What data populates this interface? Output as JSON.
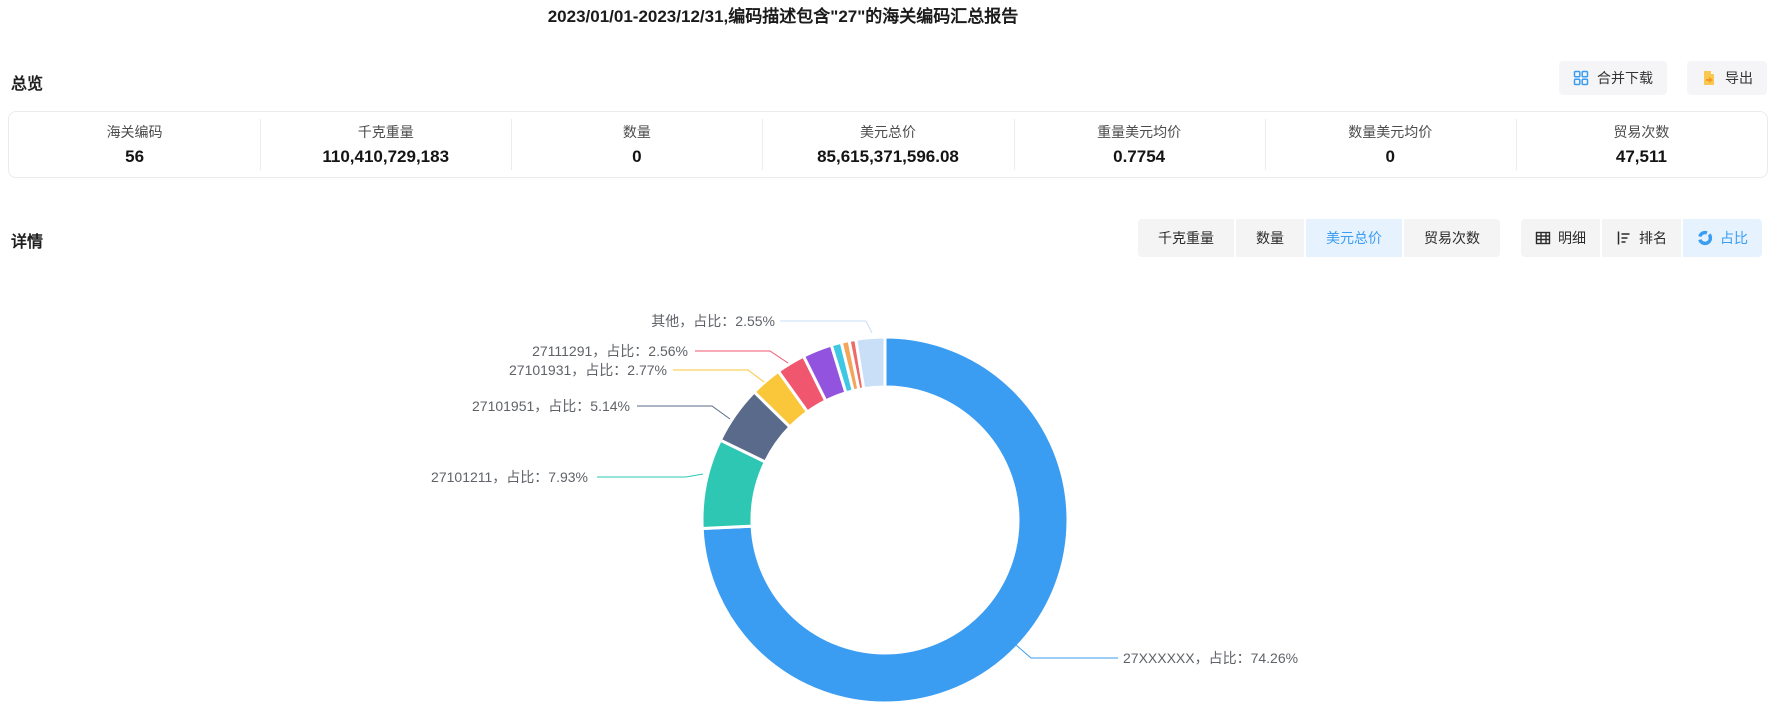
{
  "title": "2023/01/01-2023/12/31,编码描述包含\"27\"的海关编码汇总报告",
  "overview": {
    "heading": "总览",
    "buttons": {
      "merge_download": "合并下载",
      "export": "导出"
    },
    "stats": [
      {
        "label": "海关编码",
        "value": "56"
      },
      {
        "label": "千克重量",
        "value": "110,410,729,183"
      },
      {
        "label": "数量",
        "value": "0"
      },
      {
        "label": "美元总价",
        "value": "85,615,371,596.08"
      },
      {
        "label": "重量美元均价",
        "value": "0.7754"
      },
      {
        "label": "数量美元均价",
        "value": "0"
      },
      {
        "label": "贸易次数",
        "value": "47,511"
      }
    ]
  },
  "detail": {
    "heading": "详情",
    "metric_tabs": [
      {
        "label": "千克重量",
        "active": false
      },
      {
        "label": "数量",
        "active": false
      },
      {
        "label": "美元总价",
        "active": true
      },
      {
        "label": "贸易次数",
        "active": false
      }
    ],
    "view_tabs": [
      {
        "label": "明细",
        "icon": "table-icon",
        "active": false
      },
      {
        "label": "排名",
        "icon": "ranking-icon",
        "active": false
      },
      {
        "label": "占比",
        "icon": "pie-icon",
        "active": true
      }
    ]
  },
  "chart_data": {
    "type": "pie",
    "shape": "donut",
    "unit": "percent of 美元总价",
    "legend": "off",
    "label_color": "#5f6368",
    "slices": [
      {
        "label": "27XXXXXX",
        "value": 74.26,
        "color": "#3b9df2",
        "label_text": "27XXXXXX，占比：74.26%"
      },
      {
        "label": "27101211",
        "value": 7.93,
        "color": "#2ec7b4",
        "label_text": "27101211，占比：7.93%"
      },
      {
        "label": "27101951",
        "value": 5.14,
        "color": "#5a6a8a",
        "label_text": "27101951，占比：5.14%"
      },
      {
        "label": "27101931",
        "value": 2.77,
        "color": "#fac73a",
        "label_text": "27101931，占比：2.77%"
      },
      {
        "label": "27111291",
        "value": 2.56,
        "color": "#f0566e",
        "label_text": "27111291，占比：2.56%"
      },
      {
        "label": "",
        "value": 2.6,
        "color": "#9254de",
        "label_text": ""
      },
      {
        "label": "",
        "value": 0.9,
        "color": "#3fc8e4",
        "label_text": ""
      },
      {
        "label": "",
        "value": 0.7,
        "color": "#f5a55a",
        "label_text": ""
      },
      {
        "label": "",
        "value": 0.59,
        "color": "#ed6a6a",
        "label_text": ""
      },
      {
        "label": "其他",
        "value": 2.55,
        "color": "#c9dff8",
        "label_text": "其他，占比：2.55%"
      }
    ]
  },
  "colors": {
    "accent_blue": "#3b9df2",
    "tab_active_bg": "#e6f2fe",
    "button_bg": "#f4f4f5",
    "panel_border": "#ebebeb",
    "export_icon_yellow": "#f8c850",
    "export_icon_orange": "#f59a23"
  }
}
